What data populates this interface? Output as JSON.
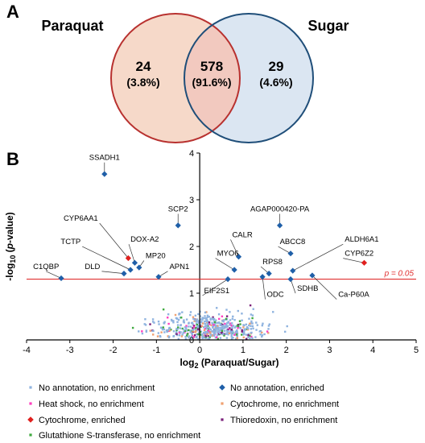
{
  "panel_a": {
    "label": "A",
    "sets": [
      {
        "name": "Paraquat",
        "fill": "#f6d9c9",
        "stroke": "#b8312f"
      },
      {
        "name": "Sugar",
        "fill": "#dbe6f2",
        "stroke": "#1f4e79"
      }
    ],
    "regions": [
      {
        "count": "24",
        "pct": "(3.8%)"
      },
      {
        "count": "578",
        "pct": "(91.6%)"
      },
      {
        "count": "29",
        "pct": "(4.6%)"
      }
    ],
    "overlap_fill": "#f2c9bf"
  },
  "panel_b": {
    "label": "B"
  },
  "chart_data": {
    "type": "scatter",
    "xlabel": "log2 (Paraquat/Sugar)",
    "xlabel_parts": {
      "pre": "log",
      "sub": "2",
      "post": " (Paraquat/Sugar)"
    },
    "ylabel_parts": {
      "pre": "-log",
      "sub": "10",
      "mid": " (",
      "ital": "p",
      "post": "-value)"
    },
    "xlim": [
      -4,
      5
    ],
    "ylim": [
      0,
      4
    ],
    "xticks": [
      "-4",
      "-3",
      "-2",
      "-1",
      "0",
      "1",
      "2",
      "3",
      "4",
      "5"
    ],
    "yticks": [
      "0",
      "1",
      "2",
      "3",
      "4"
    ],
    "threshold": {
      "y": 1.30103,
      "label": "p = 0.05",
      "color": "#e03030"
    },
    "labeled_points": [
      {
        "name": "SSADH1",
        "x": -2.2,
        "y": 3.55,
        "color": "#1f5fa8",
        "lx": -2.2,
        "ly": 3.85,
        "anchor": "middle"
      },
      {
        "name": "SCP2",
        "x": -0.5,
        "y": 2.45,
        "color": "#1f5fa8",
        "lx": -0.5,
        "ly": 2.75,
        "anchor": "middle"
      },
      {
        "name": "CYP6AA1",
        "x": -1.65,
        "y": 1.75,
        "color": "#e0201e",
        "lx": -2.35,
        "ly": 2.55,
        "anchor": "end"
      },
      {
        "name": "DOX-A2",
        "x": -1.5,
        "y": 1.65,
        "color": "#1f5fa8",
        "lx": -1.6,
        "ly": 2.1,
        "anchor": "start"
      },
      {
        "name": "TCTP",
        "x": -1.6,
        "y": 1.5,
        "color": "#1f5fa8",
        "lx": -2.75,
        "ly": 2.05,
        "anchor": "end"
      },
      {
        "name": "MP20",
        "x": -1.4,
        "y": 1.55,
        "color": "#1f5fa8",
        "lx": -1.25,
        "ly": 1.75,
        "anchor": "start"
      },
      {
        "name": "C1QBP",
        "x": -3.2,
        "y": 1.32,
        "color": "#1f5fa8",
        "lx": -3.55,
        "ly": 1.52,
        "anchor": "middle"
      },
      {
        "name": "DLD",
        "x": -1.75,
        "y": 1.42,
        "color": "#1f5fa8",
        "lx": -2.3,
        "ly": 1.52,
        "anchor": "end"
      },
      {
        "name": "APN1",
        "x": -0.95,
        "y": 1.35,
        "color": "#1f5fa8",
        "lx": -0.7,
        "ly": 1.52,
        "anchor": "start"
      },
      {
        "name": "AGAP000420-PA",
        "x": 1.85,
        "y": 2.45,
        "color": "#1f5fa8",
        "lx": 1.85,
        "ly": 2.75,
        "anchor": "middle"
      },
      {
        "name": "CALR",
        "x": 0.9,
        "y": 1.78,
        "color": "#1f5fa8",
        "lx": 0.75,
        "ly": 2.2,
        "anchor": "start"
      },
      {
        "name": "MYO6",
        "x": 0.8,
        "y": 1.5,
        "color": "#1f5fa8",
        "lx": 0.4,
        "ly": 1.8,
        "anchor": "start"
      },
      {
        "name": "ABCC8",
        "x": 2.1,
        "y": 1.85,
        "color": "#1f5fa8",
        "lx": 1.85,
        "ly": 2.05,
        "anchor": "start"
      },
      {
        "name": "RPS8",
        "x": 1.6,
        "y": 1.42,
        "color": "#1f5fa8",
        "lx": 1.45,
        "ly": 1.62,
        "anchor": "start"
      },
      {
        "name": "ALDH6A1",
        "x": 2.15,
        "y": 1.48,
        "color": "#1f5fa8",
        "lx": 3.35,
        "ly": 2.1,
        "anchor": "start"
      },
      {
        "name": "CYP6Z2",
        "x": 3.8,
        "y": 1.65,
        "color": "#e0201e",
        "lx": 3.35,
        "ly": 1.8,
        "anchor": "start"
      },
      {
        "name": "EIF2S1",
        "x": 0.65,
        "y": 1.3,
        "color": "#1f5fa8",
        "lx": 0.1,
        "ly": 1.0,
        "anchor": "start"
      },
      {
        "name": "ODC",
        "x": 1.45,
        "y": 1.35,
        "color": "#1f5fa8",
        "lx": 1.55,
        "ly": 0.92,
        "anchor": "start"
      },
      {
        "name": "SDHB",
        "x": 2.1,
        "y": 1.3,
        "color": "#1f5fa8",
        "lx": 2.25,
        "ly": 1.05,
        "anchor": "start"
      },
      {
        "name": "Ca-P60A",
        "x": 2.6,
        "y": 1.38,
        "color": "#1f5fa8",
        "lx": 3.2,
        "ly": 0.92,
        "anchor": "start"
      }
    ],
    "legend": [
      {
        "label": "No annotation, no enrichment",
        "color": "#8fb3df",
        "marker": "dot"
      },
      {
        "label": "No annotation, enriched",
        "color": "#1f5fa8",
        "marker": "diamond"
      },
      {
        "label": "Heat shock, no enrichment",
        "color": "#ff3fbf",
        "marker": "dot"
      },
      {
        "label": "Cytochrome, no enrichment",
        "color": "#f0a070",
        "marker": "dot"
      },
      {
        "label": "Cytochrome, enriched",
        "color": "#e0201e",
        "marker": "diamond"
      },
      {
        "label": "Thioredoxin, no enrichment",
        "color": "#7a1f7a",
        "marker": "dot"
      },
      {
        "label": "Glutathione S-transferase, no enrichment",
        "color": "#3faa3f",
        "marker": "dot"
      }
    ]
  }
}
